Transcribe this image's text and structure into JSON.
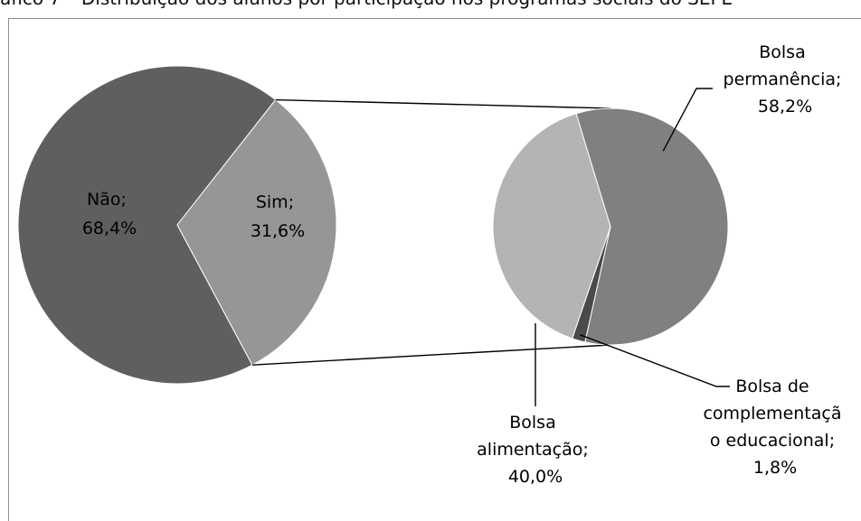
{
  "caption": "áfico 7 – Distribuição dos alunos por participação nos programas sociais do SEPE",
  "chart_data": [
    {
      "type": "pie",
      "name": "main-pie",
      "slices": [
        {
          "label_lines": [
            "Não;",
            "68,4%"
          ],
          "category": "Não",
          "value": 68.4,
          "color": "#5f5f5f"
        },
        {
          "label_lines": [
            "Sim;",
            "31,6%"
          ],
          "category": "Sim",
          "value": 31.6,
          "color": "#969696"
        }
      ]
    },
    {
      "type": "pie",
      "name": "secondary-pie",
      "slices": [
        {
          "label_lines": [
            "Bolsa",
            "permanência;",
            "58,2%"
          ],
          "category": "Bolsa permanência",
          "value": 58.2,
          "color": "#808080"
        },
        {
          "label_lines": [
            "Bolsa de",
            "complementaçã",
            "o educacional;",
            "1,8%"
          ],
          "category": "Bolsa de complementação educacional",
          "value": 1.8,
          "color": "#4a4a4a"
        },
        {
          "label_lines": [
            "Bolsa",
            "alimentação;",
            "40,0%"
          ],
          "category": "Bolsa alimentação",
          "value": 40.0,
          "color": "#b4b4b4"
        }
      ]
    }
  ]
}
